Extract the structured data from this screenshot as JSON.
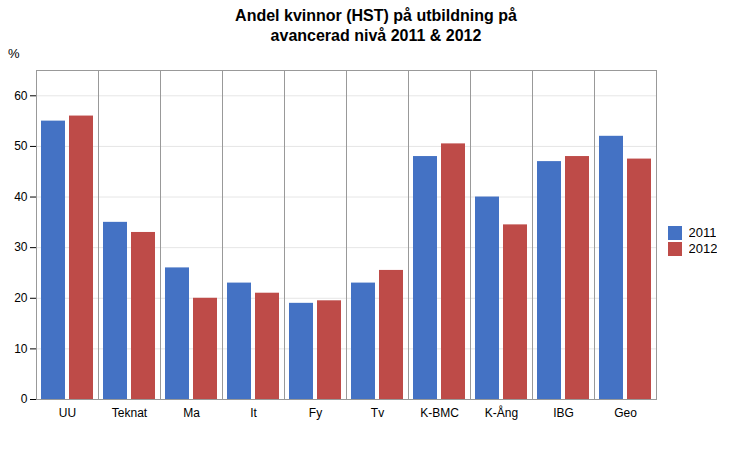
{
  "chart_data": {
    "type": "bar",
    "title": "Andel kvinnor (HST) på utbildning på\navancerad nivå 2011 & 2012",
    "categories": [
      "UU",
      "Teknat",
      "Ma",
      "It",
      "Fy",
      "Tv",
      "K-BMC",
      "K-Ång",
      "IBG",
      "Geo"
    ],
    "series": [
      {
        "name": "2011",
        "color": "#4472C4",
        "values": [
          55,
          35,
          26,
          23,
          19,
          23,
          48,
          40,
          47,
          52
        ]
      },
      {
        "name": "2012",
        "color": "#BE4B48",
        "values": [
          56,
          33,
          20,
          21,
          19.5,
          25.5,
          50.5,
          34.5,
          48,
          47.5
        ]
      }
    ],
    "ylabel": "%",
    "ylim": [
      0,
      65
    ],
    "yticks": [
      0,
      10,
      20,
      30,
      40,
      50,
      60
    ],
    "grid": true,
    "legend": "right"
  }
}
